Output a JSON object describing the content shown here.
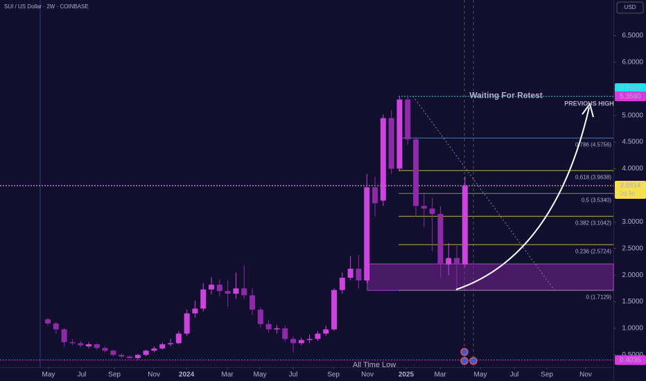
{
  "chart_data": {
    "type": "candlestick",
    "title": "SUI / US Dollar · 2W · COINBASE",
    "currency": "USD",
    "up_color": "#cc44dd",
    "down_color": "#8e2aa8",
    "open": [
      1.17,
      1.09,
      0.98,
      0.74,
      0.72,
      0.66,
      0.7,
      0.63,
      0.58,
      0.5,
      0.47,
      0.44,
      0.5,
      0.58,
      0.62,
      0.7,
      0.72,
      0.9,
      1.28,
      1.37,
      1.73,
      1.82,
      1.7,
      1.65,
      1.75,
      1.62,
      1.35,
      1.08,
      0.98,
      1.0,
      0.8,
      0.72,
      0.78,
      0.8,
      0.9,
      0.98,
      1.72,
      1.95,
      2.12,
      1.9,
      3.65,
      3.4,
      4.95,
      4.0,
      5.3,
      4.55,
      3.3,
      3.25,
      3.15,
      2.2,
      2.32,
      2.2
    ],
    "high": [
      1.2,
      1.12,
      1.0,
      0.8,
      0.76,
      0.74,
      0.72,
      0.66,
      0.6,
      0.53,
      0.49,
      0.52,
      0.6,
      0.66,
      0.73,
      0.8,
      0.95,
      1.35,
      1.52,
      1.85,
      1.96,
      1.92,
      1.9,
      2.05,
      2.18,
      1.75,
      1.4,
      1.15,
      1.06,
      1.05,
      0.85,
      0.82,
      0.88,
      0.95,
      1.05,
      1.75,
      2.05,
      2.36,
      2.38,
      3.9,
      3.85,
      5.02,
      5.1,
      5.36,
      5.36,
      4.6,
      3.55,
      3.45,
      3.3,
      2.6,
      2.55,
      3.85
    ],
    "low": [
      1.05,
      0.9,
      0.65,
      0.68,
      0.64,
      0.62,
      0.6,
      0.55,
      0.48,
      0.44,
      0.42,
      0.41,
      0.48,
      0.55,
      0.6,
      0.66,
      0.7,
      0.86,
      1.2,
      1.32,
      1.64,
      1.6,
      1.4,
      1.55,
      1.55,
      1.25,
      1.02,
      0.92,
      0.9,
      0.75,
      0.55,
      0.68,
      0.72,
      0.76,
      0.86,
      0.95,
      1.65,
      1.9,
      1.75,
      1.85,
      3.1,
      3.3,
      3.9,
      3.95,
      4.45,
      3.1,
      2.9,
      2.45,
      1.95,
      2.0,
      1.72,
      2.15
    ],
    "close": [
      1.09,
      0.98,
      0.74,
      0.72,
      0.68,
      0.7,
      0.63,
      0.58,
      0.5,
      0.47,
      0.44,
      0.5,
      0.58,
      0.62,
      0.7,
      0.72,
      0.9,
      1.28,
      1.37,
      1.73,
      1.82,
      1.7,
      1.65,
      1.75,
      1.62,
      1.35,
      1.08,
      0.98,
      1.0,
      0.8,
      0.72,
      0.78,
      0.8,
      0.9,
      0.98,
      1.72,
      1.95,
      2.12,
      1.9,
      3.65,
      3.35,
      4.95,
      4.0,
      5.3,
      4.55,
      3.3,
      3.25,
      3.15,
      2.2,
      2.32,
      2.2,
      3.6814
    ],
    "xlim": [
      -5.85,
      69.15
    ],
    "xticks": [
      {
        "value": 0.08,
        "label": "May"
      },
      {
        "value": 4.15,
        "label": "Jul"
      },
      {
        "value": 8.14,
        "label": "Sep"
      },
      {
        "value": 12.97,
        "label": "Nov"
      },
      {
        "value": 16.95,
        "label": "2024"
      },
      {
        "value": 21.95,
        "label": "Mar"
      },
      {
        "value": 25.93,
        "label": "May"
      },
      {
        "value": 30,
        "label": "Jul"
      },
      {
        "value": 34.92,
        "label": "Sep"
      },
      {
        "value": 39.07,
        "label": "Nov"
      },
      {
        "value": 43.81,
        "label": "2025"
      },
      {
        "value": 47.97,
        "label": "Mar"
      },
      {
        "value": 52.88,
        "label": "May"
      },
      {
        "value": 57.03,
        "label": "Jul"
      },
      {
        "value": 61.02,
        "label": "Sep"
      },
      {
        "value": 65.76,
        "label": "Nov"
      }
    ],
    "ylim": [
      0.27,
      7.17
    ],
    "yticks": [
      {
        "value": 0.5,
        "label": "0.5000"
      },
      {
        "value": 1,
        "label": "1.0000"
      },
      {
        "value": 1.5,
        "label": "1.5000"
      },
      {
        "value": 2,
        "label": "2.0000"
      },
      {
        "value": 2.5,
        "label": "2.5000"
      },
      {
        "value": 3,
        "label": "3.0000"
      },
      {
        "value": 3.5,
        "label": "3.5000"
      },
      {
        "value": 4,
        "label": "4.0000"
      },
      {
        "value": 4.5,
        "label": "4.5000"
      },
      {
        "value": 5,
        "label": "5.0000"
      },
      {
        "value": 5.5,
        "label": "5.5000"
      },
      {
        "value": 6,
        "label": "6.0000"
      },
      {
        "value": 6.5,
        "label": "6.5000"
      }
    ],
    "fib_levels": [
      {
        "label": "0.786 (4.5756)",
        "value": 4.5756,
        "color": "#4a78b8"
      },
      {
        "label": "0.618 (3.9638)",
        "value": 3.9638,
        "color": "#b8b84a"
      },
      {
        "label": "0.5 (3.5340)",
        "value": 3.534,
        "color": "#4caf50"
      },
      {
        "label": "0.382 (3.1042)",
        "value": 3.1042,
        "color": "#b8b84a"
      },
      {
        "label": "0.236 (2.5724)",
        "value": 2.5724,
        "color": "#b8b84a"
      },
      {
        "label": "0 (1.7129)",
        "value": 1.7129,
        "color": "#888888"
      }
    ],
    "zone": [
      1.7129,
      2.21
    ],
    "price_labels": [
      {
        "value": 5.358,
        "label": "5.3580",
        "color": "#22e0f0"
      },
      {
        "value": 5.358,
        "label": "5.3580",
        "color": "#d63be0"
      },
      {
        "value": 3.6814,
        "label": "3.6814",
        "color": "#f5e050"
      },
      {
        "value": 0.4036,
        "label": "0.4036",
        "color": "#d63be0"
      }
    ],
    "countdown": "2d 9h",
    "annotations": [
      "Waiting For Retest",
      "PREVIOUS HIGH",
      "All Time Low"
    ]
  }
}
